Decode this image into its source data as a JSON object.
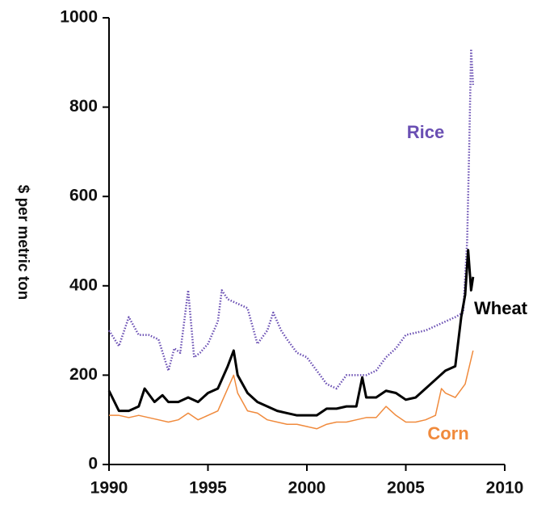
{
  "chart_data": {
    "type": "line",
    "y_label": "$ per metric ton",
    "xlim": [
      1990,
      2010
    ],
    "ylim": [
      0,
      1000
    ],
    "xticks": [
      1990,
      1995,
      2000,
      2005,
      2010
    ],
    "yticks": [
      0,
      200,
      400,
      600,
      800,
      1000
    ],
    "series": [
      {
        "name": "Rice",
        "color": "#6a4fb3",
        "style": "dotted",
        "x": [
          1990,
          1990.5,
          1991,
          1991.5,
          1992,
          1992.5,
          1993,
          1993.3,
          1993.6,
          1994,
          1994.3,
          1994.6,
          1995,
          1995.5,
          1995.7,
          1996,
          1996.5,
          1997,
          1997.5,
          1998,
          1998.3,
          1998.7,
          1999,
          1999.5,
          2000,
          2000.5,
          2001,
          2001.5,
          2002,
          2002.5,
          2003,
          2003.5,
          2004,
          2004.5,
          2005,
          2005.5,
          2006,
          2006.5,
          2007,
          2007.5,
          2007.9,
          2008.1,
          2008.2,
          2008.3,
          2008.4
        ],
        "values": [
          300,
          265,
          330,
          290,
          290,
          280,
          210,
          260,
          250,
          390,
          240,
          250,
          270,
          320,
          390,
          370,
          360,
          350,
          270,
          300,
          340,
          300,
          280,
          250,
          240,
          210,
          180,
          170,
          200,
          200,
          200,
          210,
          240,
          260,
          290,
          295,
          300,
          310,
          320,
          330,
          340,
          500,
          700,
          930,
          850
        ]
      },
      {
        "name": "Wheat",
        "color": "#000000",
        "style": "thick",
        "x": [
          1990,
          1990.5,
          1991,
          1991.5,
          1991.8,
          1992.3,
          1992.7,
          1993,
          1993.5,
          1994,
          1994.5,
          1995,
          1995.5,
          1996,
          1996.3,
          1996.5,
          1997,
          1997.5,
          1998,
          1998.5,
          1999,
          1999.5,
          2000,
          2000.5,
          2001,
          2001.5,
          2002,
          2002.5,
          2002.8,
          2003,
          2003.5,
          2004,
          2004.5,
          2005,
          2005.5,
          2006,
          2006.5,
          2007,
          2007.5,
          2007.8,
          2008,
          2008.15,
          2008.3,
          2008.4
        ],
        "values": [
          165,
          120,
          120,
          130,
          170,
          140,
          155,
          140,
          140,
          150,
          140,
          160,
          170,
          220,
          255,
          200,
          160,
          140,
          130,
          120,
          115,
          110,
          110,
          110,
          125,
          125,
          130,
          130,
          195,
          150,
          150,
          165,
          160,
          145,
          150,
          170,
          190,
          210,
          220,
          330,
          380,
          480,
          390,
          420
        ]
      },
      {
        "name": "Corn",
        "color": "#f08a3c",
        "style": "thin",
        "x": [
          1990,
          1990.5,
          1991,
          1991.5,
          1992,
          1992.5,
          1993,
          1993.5,
          1994,
          1994.5,
          1995,
          1995.5,
          1996,
          1996.3,
          1996.5,
          1997,
          1997.5,
          1998,
          1998.5,
          1999,
          1999.5,
          2000,
          2000.5,
          2001,
          2001.5,
          2002,
          2002.5,
          2003,
          2003.5,
          2004,
          2004.5,
          2005,
          2005.5,
          2006,
          2006.5,
          2006.8,
          2007,
          2007.5,
          2008,
          2008.4
        ],
        "values": [
          110,
          110,
          105,
          110,
          105,
          100,
          95,
          100,
          115,
          100,
          110,
          120,
          170,
          200,
          160,
          120,
          115,
          100,
          95,
          90,
          90,
          85,
          80,
          90,
          95,
          95,
          100,
          105,
          105,
          130,
          110,
          95,
          95,
          100,
          110,
          170,
          160,
          150,
          180,
          255
        ]
      }
    ]
  }
}
